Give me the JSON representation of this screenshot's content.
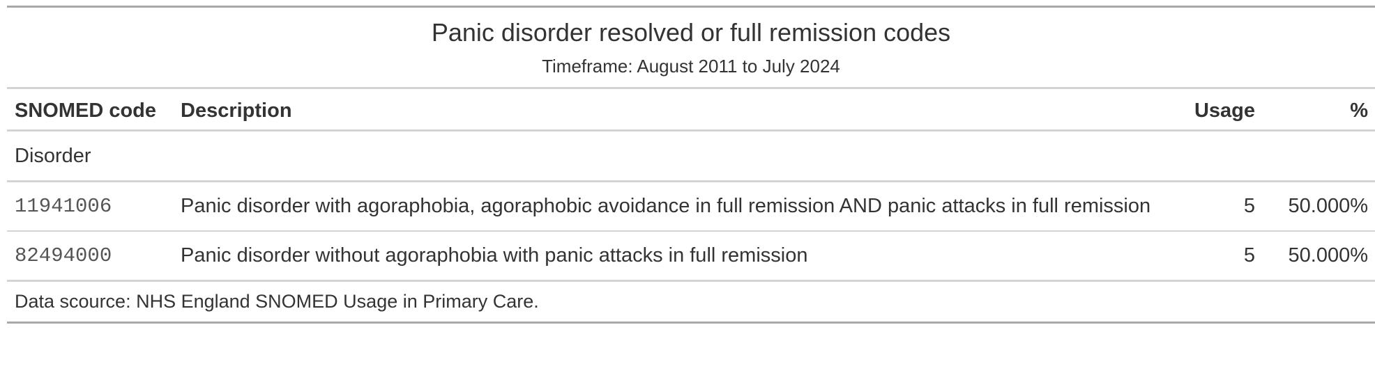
{
  "header": {
    "title": "Panic disorder resolved or full remission codes",
    "subtitle": "Timeframe: August 2011 to July 2024"
  },
  "columns": {
    "code": "SNOMED code",
    "description": "Description",
    "usage": "Usage",
    "percent": "%"
  },
  "groups": [
    {
      "label": "Disorder",
      "rows": [
        {
          "code": "11941006",
          "description": "Panic disorder with agoraphobia, agoraphobic avoidance in full remission AND panic attacks in full remission",
          "usage": "5",
          "percent": "50.000%"
        },
        {
          "code": "82494000",
          "description": "Panic disorder without agoraphobia with panic attacks in full remission",
          "usage": "5",
          "percent": "50.000%"
        }
      ]
    }
  ],
  "footer": {
    "source": "Data scource: NHS England SNOMED Usage in Primary Care."
  }
}
